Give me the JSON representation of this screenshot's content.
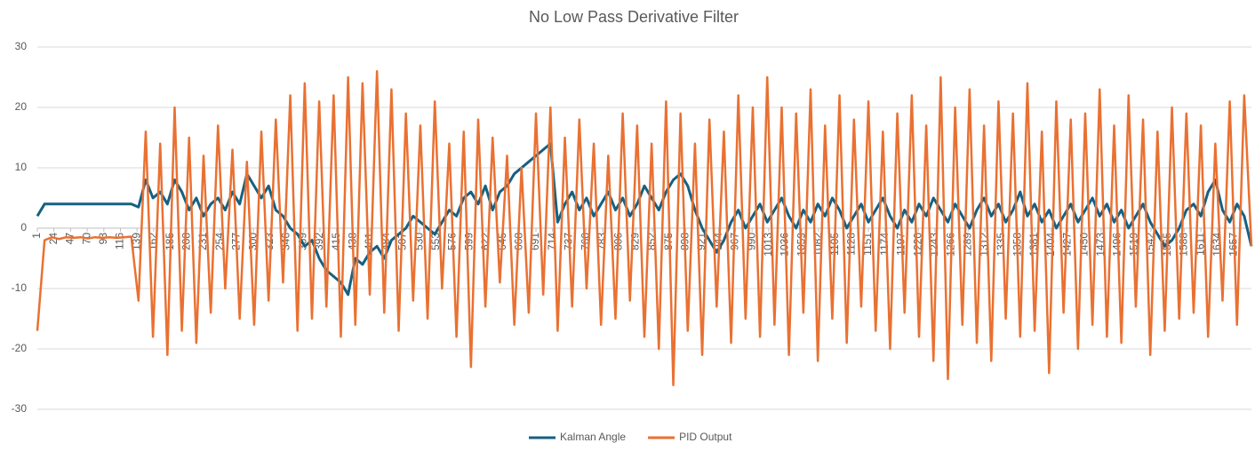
{
  "chart_data": {
    "type": "line",
    "title": "No Low Pass Derivative Filter",
    "x": [
      1,
      11,
      21,
      31,
      41,
      51,
      61,
      71,
      81,
      91,
      101,
      111,
      121,
      131,
      141,
      151,
      161,
      171,
      181,
      191,
      201,
      211,
      221,
      231,
      241,
      251,
      261,
      271,
      281,
      291,
      301,
      311,
      321,
      331,
      341,
      351,
      361,
      371,
      381,
      391,
      401,
      411,
      421,
      431,
      441,
      451,
      461,
      471,
      481,
      491,
      501,
      511,
      521,
      531,
      541,
      551,
      561,
      571,
      581,
      591,
      601,
      611,
      621,
      631,
      641,
      651,
      661,
      671,
      681,
      691,
      701,
      711,
      721,
      731,
      741,
      751,
      761,
      771,
      781,
      791,
      801,
      811,
      821,
      831,
      841,
      851,
      861,
      871,
      881,
      891,
      901,
      911,
      921,
      931,
      941,
      951,
      961,
      971,
      981,
      991,
      1001,
      1011,
      1021,
      1031,
      1041,
      1051,
      1061,
      1071,
      1081,
      1091,
      1101,
      1111,
      1121,
      1131,
      1141,
      1151,
      1161,
      1171,
      1181,
      1191,
      1201,
      1211,
      1221,
      1231,
      1241,
      1251,
      1261,
      1271,
      1281,
      1291,
      1301,
      1311,
      1321,
      1331,
      1341,
      1351,
      1361,
      1371,
      1381,
      1391,
      1401,
      1411,
      1421,
      1431,
      1441,
      1451,
      1461,
      1471,
      1481,
      1491,
      1501,
      1511,
      1521,
      1531,
      1541,
      1551,
      1561,
      1571,
      1581,
      1591,
      1601,
      1611,
      1621,
      1631,
      1641,
      1651,
      1661,
      1671,
      1681
    ],
    "series": [
      {
        "name": "Kalman Angle",
        "color": "#156082",
        "values": [
          2,
          4,
          4,
          4,
          4,
          4,
          4,
          4,
          4,
          4,
          4,
          4,
          4,
          4,
          3.5,
          8,
          5,
          6,
          4,
          8,
          6,
          3,
          5,
          2,
          4,
          5,
          3,
          6,
          4,
          9,
          7,
          5,
          7,
          3,
          2,
          0,
          -1,
          -3,
          -2,
          -5,
          -7,
          -8,
          -9,
          -11,
          -5,
          -6,
          -4,
          -3,
          -5,
          -2,
          -1,
          0,
          2,
          1,
          0,
          -1,
          1,
          3,
          2,
          5,
          6,
          4,
          7,
          3,
          6,
          7,
          9,
          10,
          11,
          12,
          13,
          14,
          1,
          4,
          6,
          3,
          5,
          2,
          4,
          6,
          3,
          5,
          2,
          4,
          7,
          5,
          3,
          6,
          8,
          9,
          7,
          3,
          0,
          -2,
          -4,
          -2,
          1,
          3,
          0,
          2,
          4,
          1,
          3,
          5,
          2,
          0,
          3,
          1,
          4,
          2,
          5,
          3,
          0,
          2,
          4,
          1,
          3,
          5,
          2,
          0,
          3,
          1,
          4,
          2,
          5,
          3,
          1,
          4,
          2,
          0,
          3,
          5,
          2,
          4,
          1,
          3,
          6,
          2,
          4,
          1,
          3,
          0,
          2,
          4,
          1,
          3,
          5,
          2,
          4,
          1,
          3,
          0,
          2,
          4,
          1,
          -1,
          -3,
          -2,
          0,
          3,
          4,
          2,
          6,
          8,
          3,
          1,
          4,
          2,
          -3
        ]
      },
      {
        "name": "PID Output",
        "color": "#E97132",
        "values": [
          -17,
          -2,
          -1.5,
          -1.8,
          -1.5,
          -1.6,
          -1.5,
          -1.7,
          -1.5,
          -1.6,
          -1.5,
          -1.6,
          -1.5,
          -1.4,
          -12,
          16,
          -18,
          14,
          -21,
          20,
          -17,
          15,
          -19,
          12,
          -14,
          17,
          -10,
          13,
          -15,
          11,
          -16,
          16,
          -12,
          18,
          -9,
          22,
          -17,
          24,
          -15,
          21,
          -13,
          22,
          -18,
          25,
          -16,
          24,
          -11,
          26,
          -14,
          23,
          -17,
          19,
          -12,
          17,
          -15,
          21,
          -10,
          14,
          -18,
          16,
          -23,
          18,
          -13,
          15,
          -9,
          12,
          -16,
          10,
          -14,
          19,
          -11,
          20,
          -17,
          15,
          -13,
          18,
          -10,
          14,
          -16,
          12,
          -15,
          19,
          -12,
          17,
          -18,
          14,
          -20,
          21,
          -26,
          19,
          -17,
          14,
          -21,
          18,
          -13,
          16,
          -19,
          22,
          -15,
          20,
          -18,
          25,
          -16,
          20,
          -21,
          19,
          -14,
          23,
          -22,
          17,
          -15,
          22,
          -19,
          18,
          -13,
          21,
          -17,
          16,
          -20,
          19,
          -14,
          22,
          -18,
          17,
          -22,
          25,
          -25,
          20,
          -16,
          23,
          -19,
          17,
          -22,
          21,
          -15,
          19,
          -18,
          24,
          -17,
          16,
          -24,
          21,
          -14,
          18,
          -20,
          19,
          -16,
          23,
          -18,
          17,
          -19,
          22,
          -13,
          18,
          -21,
          16,
          -17,
          20,
          -15,
          19,
          -14,
          17,
          -18,
          14,
          -12,
          21,
          -16,
          22,
          -3
        ]
      }
    ],
    "xlim": [
      1,
      1681
    ],
    "xticks": [
      1,
      24,
      47,
      70,
      93,
      116,
      139,
      162,
      185,
      208,
      231,
      254,
      277,
      300,
      323,
      346,
      369,
      392,
      415,
      438,
      461,
      484,
      507,
      530,
      553,
      576,
      599,
      622,
      645,
      668,
      691,
      714,
      737,
      760,
      783,
      806,
      829,
      852,
      875,
      898,
      921,
      944,
      967,
      990,
      1013,
      1036,
      1059,
      1082,
      1105,
      1128,
      1151,
      1174,
      1197,
      1220,
      1243,
      1266,
      1289,
      1312,
      1335,
      1358,
      1381,
      1404,
      1427,
      1450,
      1473,
      1496,
      1519,
      1542,
      1565,
      1588,
      1611,
      1634,
      1657
    ],
    "ylim": [
      -30,
      30
    ],
    "yticks": [
      -30,
      -20,
      -10,
      0,
      10,
      20,
      30
    ],
    "grid": true,
    "legend": "bottom"
  }
}
